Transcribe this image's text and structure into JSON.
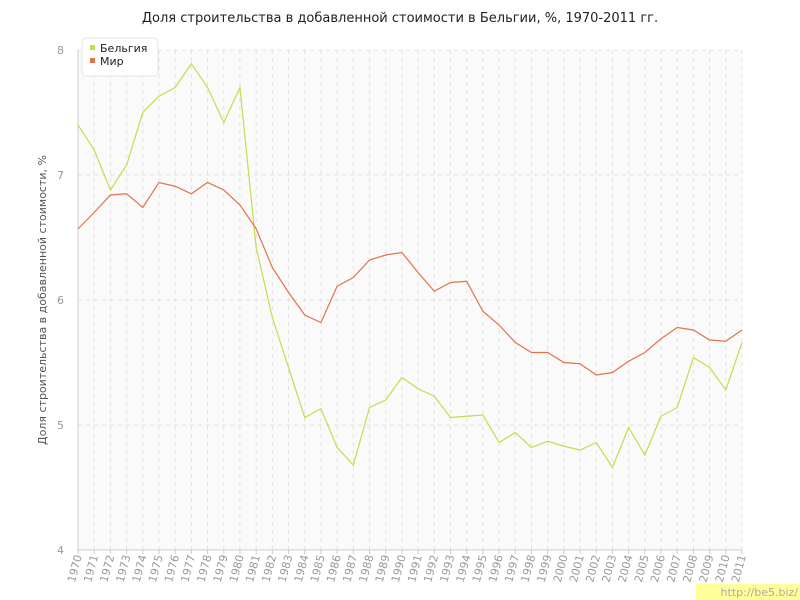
{
  "chart_data": {
    "type": "line",
    "title": "Доля строительства в добавленной стоимости в Бельгии, %, 1970-2011 гг.",
    "y_label": "Доля строительства в добавленной стоимости, %",
    "watermark": "http://be5.biz/",
    "categories": [
      "1970",
      "1971",
      "1972",
      "1973",
      "1974",
      "1975",
      "1976",
      "1977",
      "1978",
      "1979",
      "1980",
      "1981",
      "1982",
      "1983",
      "1984",
      "1985",
      "1986",
      "1987",
      "1988",
      "1989",
      "1990",
      "1991",
      "1992",
      "1993",
      "1994",
      "1995",
      "1996",
      "1997",
      "1998",
      "1999",
      "2000",
      "2001",
      "2002",
      "2003",
      "2004",
      "2005",
      "2006",
      "2007",
      "2008",
      "2009",
      "2010",
      "2011"
    ],
    "series": [
      {
        "name": "Бельгия",
        "color": "#c5dc4c",
        "values": [
          7.4,
          7.2,
          6.88,
          7.08,
          7.5,
          7.63,
          7.7,
          7.89,
          7.7,
          7.42,
          7.7,
          6.42,
          5.86,
          5.46,
          5.06,
          5.13,
          4.82,
          4.68,
          5.14,
          5.2,
          5.38,
          5.29,
          5.23,
          5.06,
          5.07,
          5.08,
          4.86,
          4.94,
          4.82,
          4.87,
          4.83,
          4.8,
          4.86,
          4.66,
          4.98,
          4.76,
          5.07,
          5.14,
          5.54,
          5.46,
          5.28,
          5.66
        ]
      },
      {
        "name": "Мир",
        "color": "#e0734a",
        "values": [
          6.57,
          6.7,
          6.84,
          6.85,
          6.74,
          6.94,
          6.91,
          6.85,
          6.94,
          6.88,
          6.76,
          6.57,
          6.26,
          6.06,
          5.88,
          5.82,
          6.11,
          6.18,
          6.32,
          6.36,
          6.38,
          6.22,
          6.07,
          6.14,
          6.15,
          5.91,
          5.8,
          5.66,
          5.58,
          5.58,
          5.5,
          5.49,
          5.4,
          5.42,
          5.51,
          5.58,
          5.69,
          5.78,
          5.76,
          5.68,
          5.67,
          5.76
        ]
      }
    ],
    "ylim": [
      4,
      8
    ],
    "yticks": [
      4,
      5,
      6,
      7,
      8
    ],
    "grid": true,
    "legend": "top-left"
  }
}
